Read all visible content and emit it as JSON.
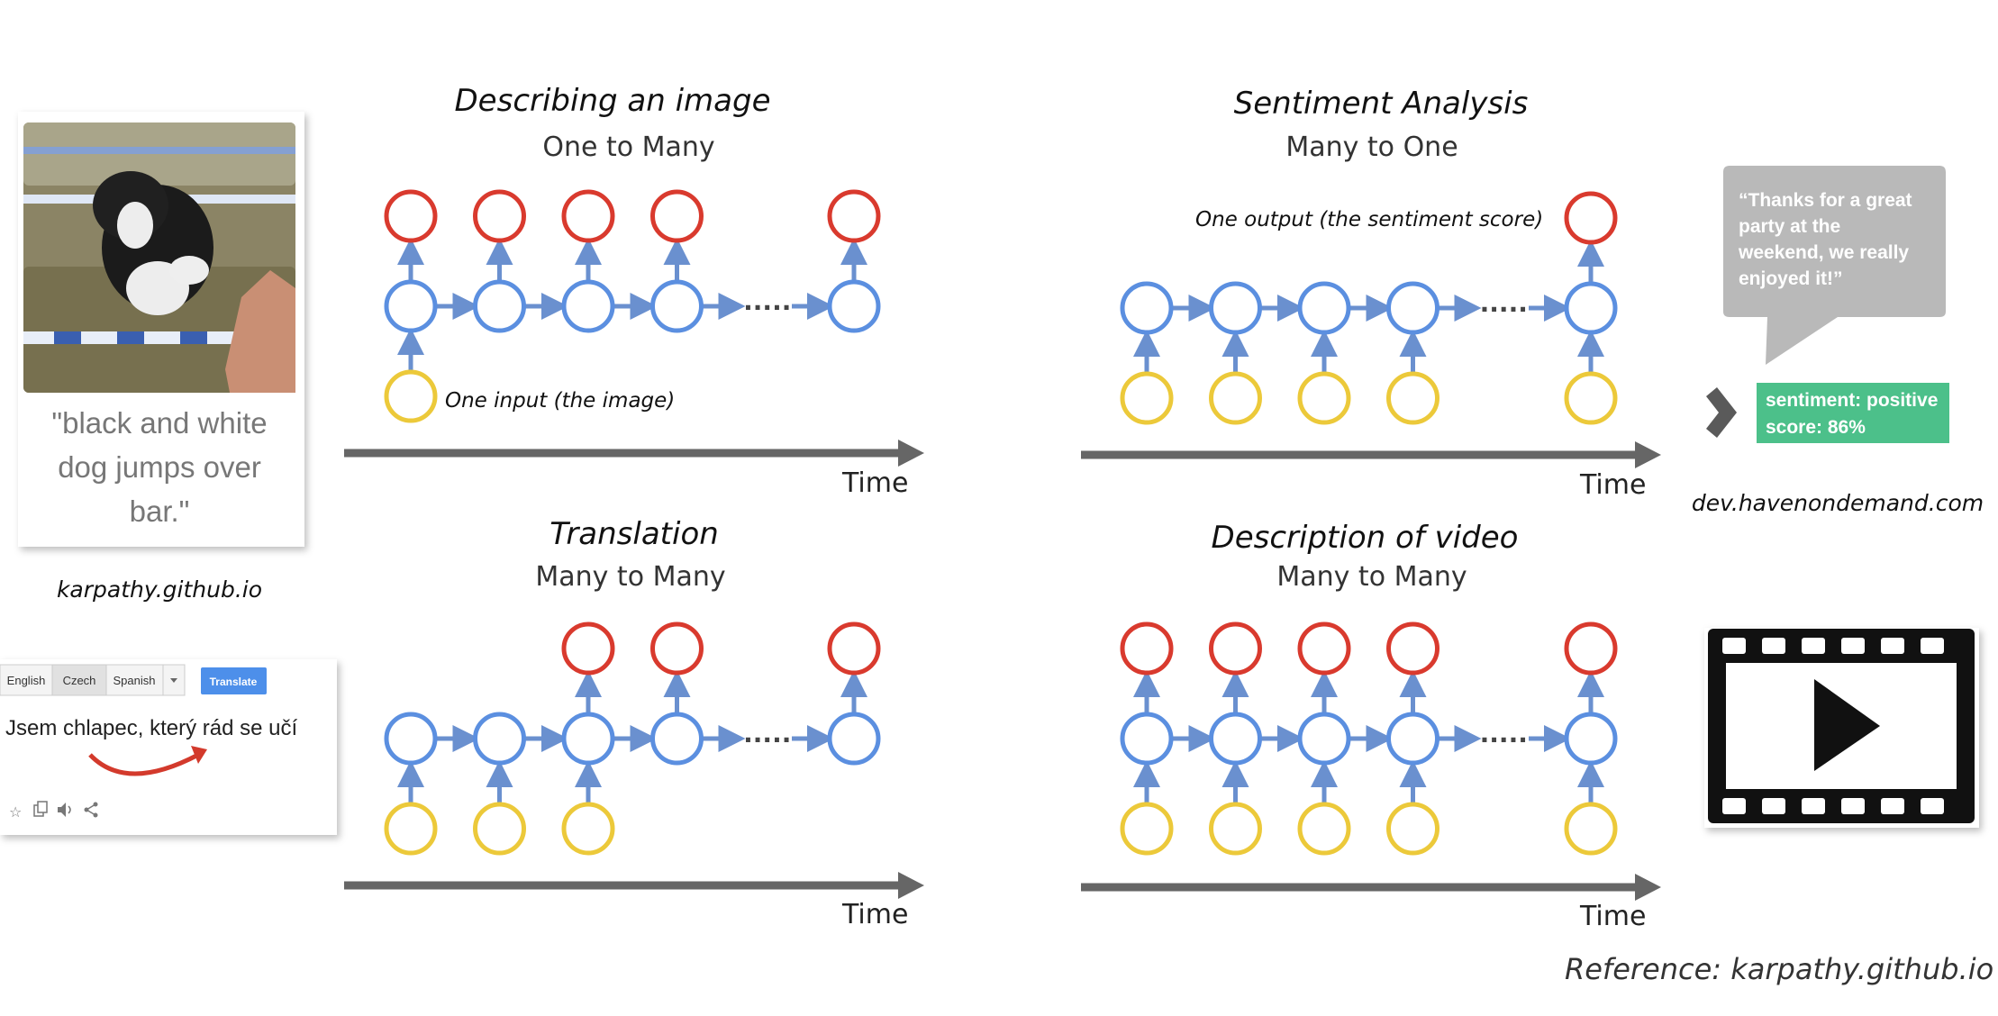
{
  "panels": {
    "one_to_many": {
      "title": "Describing an image",
      "subtitle": "One to Many",
      "note": "One input (the image)",
      "time": "Time"
    },
    "many_to_one": {
      "title": "Sentiment Analysis",
      "subtitle": "Many to One",
      "note": "One output (the sentiment score)",
      "time": "Time"
    },
    "translation": {
      "title": "Translation",
      "subtitle": "Many to Many",
      "time": "Time"
    },
    "video": {
      "title": "Description of video",
      "subtitle": "Many to Many",
      "time": "Time"
    }
  },
  "dots": ".....",
  "image_example": {
    "caption_lines": [
      "\"black and white",
      "dog jumps over",
      "bar.\""
    ],
    "credit": "karpathy.github.io"
  },
  "translate_widget": {
    "tabs": [
      "English",
      "Czech",
      "Spanish"
    ],
    "button": "Translate",
    "sentence": "Jsem chlapec, který rád se učí"
  },
  "sentiment_example": {
    "quote_lines": [
      "“Thanks for a great",
      "party at the",
      "weekend, we really",
      "enjoyed it!”"
    ],
    "result_lines": [
      "sentiment: positive",
      "score: 86%"
    ],
    "credit": "dev.havenondemand.com"
  },
  "reference": "Reference: karpathy.github.io",
  "colors": {
    "output": "#d93a2e",
    "hidden": "#5b8fe0",
    "input": "#ecc93a",
    "arrow": "#6a90cf",
    "timeline": "#666666",
    "sentiment_box": "#4cc08a",
    "speech_bubble": "#b9b9b9"
  }
}
